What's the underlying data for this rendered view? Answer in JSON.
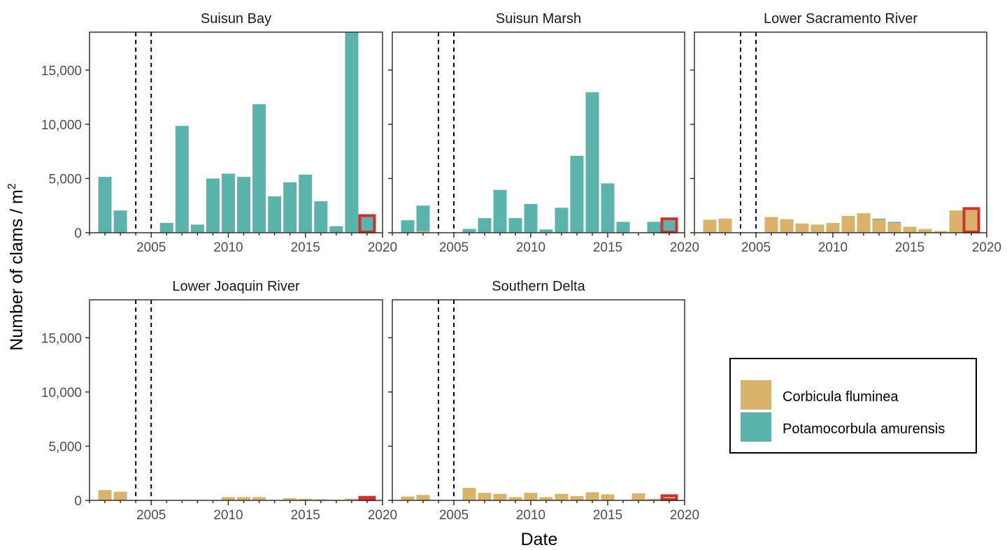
{
  "chart_data": {
    "type": "bar",
    "xlabel": "Date",
    "ylabel": "Number of clams / m",
    "ylabel_superscript": "2",
    "ylim": [
      0,
      18500
    ],
    "xlim": [
      2001,
      2020
    ],
    "x_ticks": [
      2005,
      2010,
      2015,
      2020
    ],
    "y_ticks": [
      0,
      5000,
      10000,
      15000
    ],
    "y_tick_labels": [
      "0",
      "5,000",
      "10,000",
      "15,000"
    ],
    "grid": false,
    "reference_lines": [
      2004,
      2005
    ],
    "highlight_year": 2019,
    "highlight_color": "#d03030",
    "legend": {
      "position": "right",
      "entries": [
        {
          "name": "Corbicula fluminea",
          "color": "#d9b36a"
        },
        {
          "name": "Potamocorbula amurensis",
          "color": "#5bb4ac"
        }
      ]
    },
    "panels": [
      {
        "title": "Suisun Bay",
        "series": [
          {
            "name": "Corbicula fluminea",
            "values": {
              "2002": 0,
              "2003": 0,
              "2006": 0,
              "2007": 0,
              "2008": 0,
              "2009": 0,
              "2010": 0,
              "2011": 0,
              "2012": 0,
              "2013": 0,
              "2014": 0,
              "2015": 0,
              "2016": 0,
              "2017": 0,
              "2018": 0,
              "2019": 0
            }
          },
          {
            "name": "Potamocorbula amurensis",
            "values": {
              "2002": 5150,
              "2003": 2050,
              "2006": 900,
              "2007": 9850,
              "2008": 750,
              "2009": 5000,
              "2010": 5450,
              "2011": 5150,
              "2012": 11850,
              "2013": 3350,
              "2014": 4650,
              "2015": 5350,
              "2016": 2900,
              "2017": 600,
              "2018": 18500,
              "2019": 1450
            }
          }
        ]
      },
      {
        "title": "Suisun Marsh",
        "series": [
          {
            "name": "Corbicula fluminea",
            "values": {
              "2002": 0,
              "2003": 150,
              "2006": 0,
              "2007": 0,
              "2008": 0,
              "2009": 0,
              "2010": 0,
              "2011": 0,
              "2012": 0,
              "2013": 0,
              "2014": 0,
              "2015": 0,
              "2016": 0,
              "2018": 0,
              "2019": 0
            }
          },
          {
            "name": "Potamocorbula amurensis",
            "values": {
              "2002": 1150,
              "2003": 2350,
              "2006": 350,
              "2007": 1350,
              "2008": 3950,
              "2009": 1350,
              "2010": 2650,
              "2011": 300,
              "2012": 2300,
              "2013": 7100,
              "2014": 12950,
              "2015": 4550,
              "2016": 1000,
              "2018": 1000,
              "2019": 1150
            }
          }
        ]
      },
      {
        "title": "Lower Sacramento River",
        "series": [
          {
            "name": "Corbicula fluminea",
            "values": {
              "2002": 1200,
              "2003": 1300,
              "2006": 1450,
              "2007": 1250,
              "2008": 850,
              "2009": 750,
              "2010": 900,
              "2011": 1550,
              "2012": 1800,
              "2013": 1200,
              "2014": 900,
              "2015": 550,
              "2016": 350,
              "2017": 150,
              "2018": 2050,
              "2019": 2100
            }
          },
          {
            "name": "Potamocorbula amurensis",
            "values": {
              "2002": 0,
              "2003": 0,
              "2006": 0,
              "2007": 0,
              "2008": 0,
              "2009": 0,
              "2010": 0,
              "2011": 0,
              "2012": 0,
              "2013": 100,
              "2014": 100,
              "2015": 0,
              "2016": 0,
              "2017": 0,
              "2018": 0,
              "2019": 0
            }
          }
        ]
      },
      {
        "title": "Lower Joaquin River",
        "series": [
          {
            "name": "Corbicula fluminea",
            "values": {
              "2002": 950,
              "2003": 800,
              "2006": 0,
              "2007": 0,
              "2008": 0,
              "2009": 0,
              "2010": 300,
              "2011": 300,
              "2012": 300,
              "2013": 0,
              "2014": 200,
              "2015": 150,
              "2016": 100,
              "2017": 0,
              "2018": 150,
              "2019": 150
            }
          },
          {
            "name": "Potamocorbula amurensis",
            "values": {
              "2002": 0,
              "2003": 0,
              "2006": 0,
              "2007": 0,
              "2008": 0,
              "2009": 0,
              "2010": 0,
              "2011": 0,
              "2012": 0,
              "2013": 0,
              "2014": 0,
              "2015": 0,
              "2016": 0,
              "2017": 0,
              "2018": 0,
              "2019": 0
            }
          }
        ]
      },
      {
        "title": "Southern Delta",
        "series": [
          {
            "name": "Corbicula fluminea",
            "values": {
              "2002": 350,
              "2003": 500,
              "2006": 1150,
              "2007": 700,
              "2008": 600,
              "2009": 300,
              "2010": 700,
              "2011": 300,
              "2012": 600,
              "2013": 400,
              "2014": 750,
              "2015": 550,
              "2017": 650,
              "2018": 150,
              "2019": 300
            }
          },
          {
            "name": "Potamocorbula amurensis",
            "values": {
              "2002": 0,
              "2003": 0,
              "2006": 0,
              "2007": 0,
              "2008": 0,
              "2009": 0,
              "2010": 0,
              "2011": 0,
              "2012": 0,
              "2013": 0,
              "2014": 0,
              "2015": 0,
              "2017": 0,
              "2018": 0,
              "2019": 0
            }
          }
        ]
      }
    ]
  }
}
